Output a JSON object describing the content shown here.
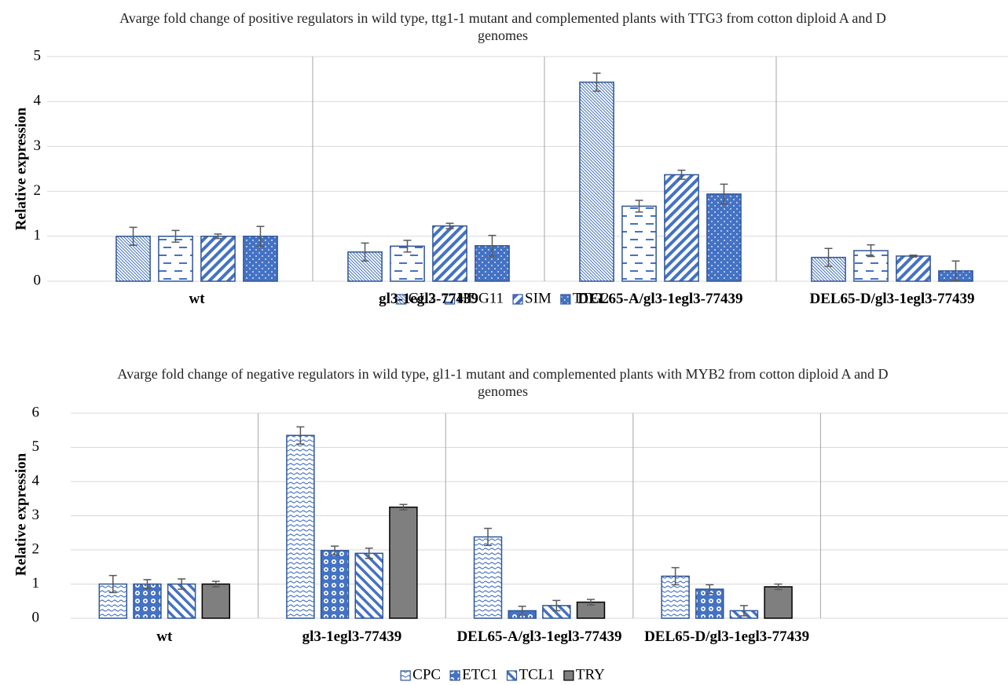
{
  "chart_data": [
    {
      "type": "bar",
      "title": "Avarge fold change of positive regulators in wild type, ttg1-1 mutant and complemented plants with TTG3 from cotton diploid A and D genomes",
      "ylabel": "Relative expression",
      "categories": [
        "wt",
        "gl3-1egl3-77439",
        "DEL65-A/gl3-1egl3-77439",
        "DEL65-D/gl3-1egl3-77439"
      ],
      "series": [
        {
          "name": "GL2",
          "color": "#4472c4",
          "pattern": "p-gl2",
          "values": [
            1.0,
            0.65,
            4.43,
            0.53
          ],
          "errors": [
            0.2,
            0.2,
            0.2,
            0.2
          ]
        },
        {
          "name": "HDG11",
          "color": "#4472c4",
          "pattern": "p-hdg11",
          "values": [
            1.0,
            0.78,
            1.67,
            0.68
          ],
          "errors": [
            0.13,
            0.13,
            0.13,
            0.13
          ]
        },
        {
          "name": "SIM",
          "color": "#4472c4",
          "pattern": "p-sim",
          "values": [
            1.0,
            1.23,
            2.37,
            0.56
          ],
          "errors": [
            0.05,
            0.06,
            0.1,
            0.02
          ]
        },
        {
          "name": "TTG2",
          "color": "#4472c4",
          "pattern": "p-ttg2",
          "values": [
            1.0,
            0.79,
            1.94,
            0.23
          ],
          "errors": [
            0.22,
            0.23,
            0.22,
            0.22
          ]
        }
      ],
      "ylim": [
        0,
        5
      ],
      "yticks": [
        0,
        1,
        2,
        3,
        4,
        5
      ],
      "grid": true,
      "legend": "bottom"
    },
    {
      "type": "bar",
      "title": "Avarge fold change of negative regulators in wild type, gl1-1 mutant and complemented plants with MYB2 from cotton diploid A and D genomes",
      "ylabel": "Relative expression",
      "categories": [
        "wt",
        "gl3-1egl3-77439",
        "DEL65-A/gl3-1egl3-77439",
        "DEL65-D/gl3-1egl3-77439",
        null
      ],
      "series": [
        {
          "name": "CPC",
          "color": "#4472c4",
          "pattern": "p-cpc",
          "values": [
            1.0,
            5.35,
            2.38,
            1.23,
            null
          ],
          "errors": [
            0.25,
            0.25,
            0.25,
            0.25,
            null
          ]
        },
        {
          "name": "ETC1",
          "color": "#4472c4",
          "pattern": "p-etc1",
          "values": [
            1.0,
            1.98,
            0.22,
            0.85,
            null
          ],
          "errors": [
            0.13,
            0.13,
            0.13,
            0.13,
            null
          ]
        },
        {
          "name": "TCL1",
          "color": "#4472c4",
          "pattern": "p-tcl1",
          "values": [
            1.0,
            1.9,
            0.37,
            0.22,
            null
          ],
          "errors": [
            0.15,
            0.15,
            0.15,
            0.15,
            null
          ]
        },
        {
          "name": "TRY",
          "color": "#7f7f7f",
          "pattern": "p-try",
          "values": [
            1.0,
            3.25,
            0.47,
            0.92,
            null
          ],
          "errors": [
            0.08,
            0.08,
            0.08,
            0.08,
            null
          ]
        }
      ],
      "ylim": [
        0,
        6
      ],
      "yticks": [
        0,
        1,
        2,
        3,
        4,
        5,
        6
      ],
      "grid": true,
      "legend": "bottom"
    }
  ]
}
